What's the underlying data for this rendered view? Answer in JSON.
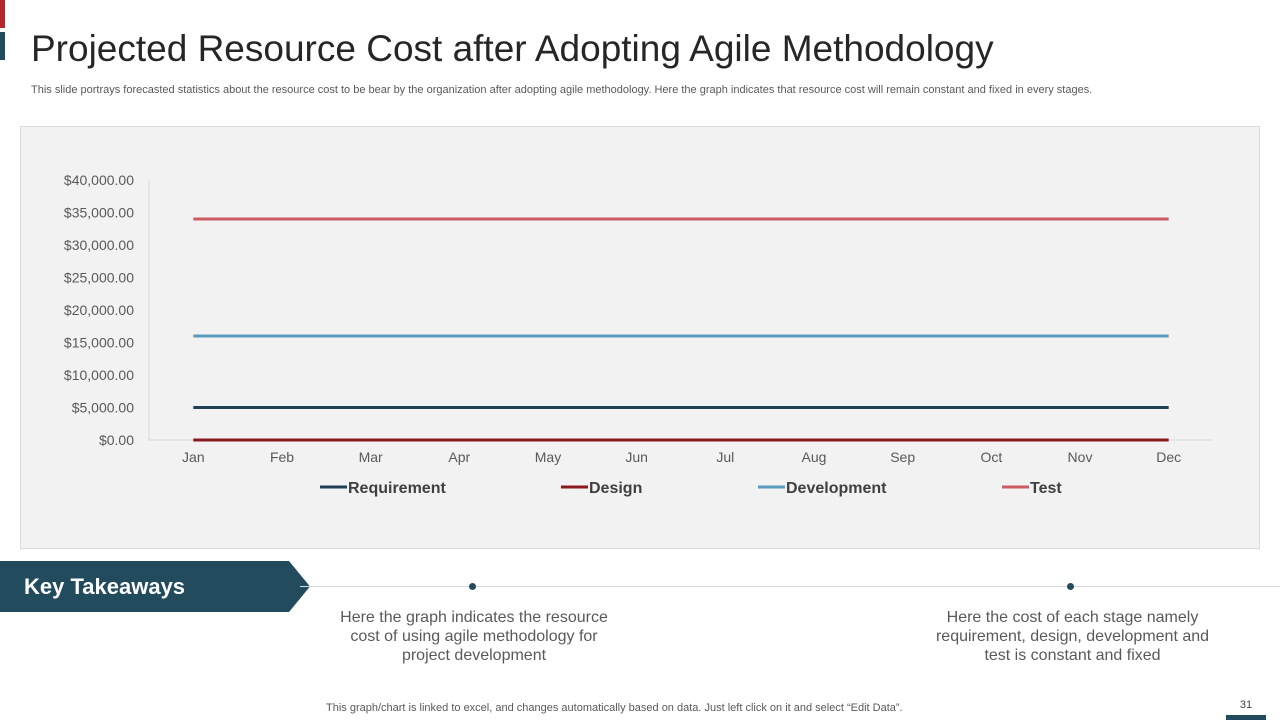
{
  "slide": {
    "title": "Projected Resource Cost after Adopting Agile Methodology",
    "subtitle": "This slide portrays forecasted statistics about the resource cost to be bear by the organization after adopting agile methodology. Here the graph indicates that resource cost will remain constant and fixed in every stages.",
    "page_number": "31",
    "footer_note": "This graph/chart is linked to excel, and changes automatically based on data. Just left click on it and select “Edit Data”.",
    "colors": {
      "accent_red": "#b5262e",
      "accent_teal": "#234b5e",
      "panel": "#f2f2f2"
    }
  },
  "takeaways": {
    "heading": "Key Takeaways",
    "points": [
      "Here the graph indicates the resource cost of using agile methodology for project development",
      "Here the cost of each stage namely requirement, design, development and test is constant and fixed"
    ]
  },
  "chart_data": {
    "type": "line",
    "title": "",
    "xlabel": "",
    "ylabel": "",
    "categories": [
      "Jan",
      "Feb",
      "Mar",
      "Apr",
      "May",
      "Jun",
      "Jul",
      "Aug",
      "Sep",
      "Oct",
      "Nov",
      "Dec"
    ],
    "ylim": [
      0,
      40000
    ],
    "ytick_step": 5000,
    "ytick_labels": [
      "$0.00",
      "$5,000.00",
      "$10,000.00",
      "$15,000.00",
      "$20,000.00",
      "$25,000.00",
      "$30,000.00",
      "$35,000.00",
      "$40,000.00"
    ],
    "grid": false,
    "legend_position": "bottom",
    "series": [
      {
        "name": "Requirement",
        "color": "#1f3f55",
        "values": [
          5000,
          5000,
          5000,
          5000,
          5000,
          5000,
          5000,
          5000,
          5000,
          5000,
          5000,
          5000
        ]
      },
      {
        "name": "Design",
        "color": "#8b1a1f",
        "values": [
          0,
          0,
          0,
          0,
          0,
          0,
          0,
          0,
          0,
          0,
          0,
          0
        ]
      },
      {
        "name": "Development",
        "color": "#5b9bbd",
        "values": [
          16000,
          16000,
          16000,
          16000,
          16000,
          16000,
          16000,
          16000,
          16000,
          16000,
          16000,
          16000
        ]
      },
      {
        "name": "Test",
        "color": "#cd5c62",
        "values": [
          34000,
          34000,
          34000,
          34000,
          34000,
          34000,
          34000,
          34000,
          34000,
          34000,
          34000,
          34000
        ]
      }
    ]
  }
}
